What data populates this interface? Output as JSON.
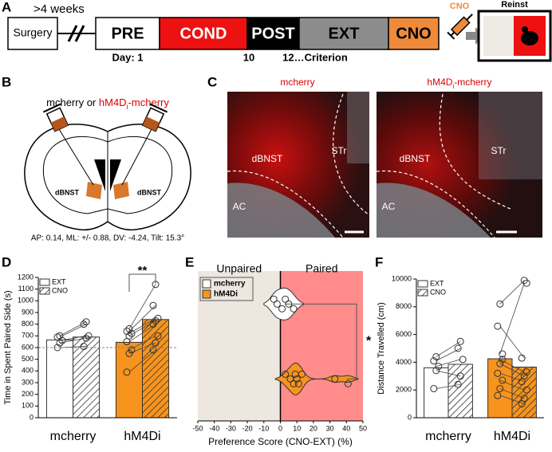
{
  "timeline": {
    "label": "A",
    "gap": ">4 weeks",
    "surgery": "Surgery",
    "stages": [
      {
        "name": "PRE",
        "color": "#ffffff"
      },
      {
        "name": "COND",
        "color": "#ee1111"
      },
      {
        "name": "POST",
        "color": "#000000"
      },
      {
        "name": "EXT",
        "color": "#8c8c8c"
      },
      {
        "name": "CNO",
        "color": "#ef8a3a"
      }
    ],
    "days": [
      "Day: 1",
      "10",
      "12…Criterion"
    ],
    "drug": "CNO",
    "test": "Reinst"
  },
  "schematic": {
    "label": "B",
    "virus_a": "mcherry or",
    "virus_b": "hM4D",
    "virus_b_sub": "i",
    "virus_b_suffix": "-mcherry",
    "regions": [
      "dBNST",
      "dBNST"
    ],
    "coordinates": "AP: 0.14, ML: +/- 0.88, DV: -4.24, Tilt: 15.3°"
  },
  "histology": {
    "label": "C",
    "panels": [
      {
        "title": "mcherry"
      },
      {
        "title": "hM4D",
        "sub": "i",
        "suffix": "-mcherry"
      }
    ],
    "regions": [
      "dBNST",
      "STr",
      "AC"
    ]
  },
  "chart_data": [
    {
      "type": "bar",
      "label": "D",
      "y_label": "Time in Spent Paired Side (s)",
      "categories": [
        "mcherry",
        "hM4Di"
      ],
      "category_colors": [
        "#ffffff",
        "#f7941d"
      ],
      "series": [
        {
          "name": "EXT",
          "hatch": false,
          "values": [
            665,
            645
          ],
          "points": [
            [
              600,
              640,
              660,
              690,
              700
            ],
            [
              390,
              550,
              580,
              650,
              700,
              720,
              740,
              760
            ]
          ]
        },
        {
          "name": "CNO",
          "hatch": true,
          "values": [
            690,
            840
          ],
          "points": [
            [
              610,
              680,
              700,
              800,
              820
            ],
            [
              580,
              640,
              700,
              800,
              830,
              850,
              960,
              1140
            ]
          ]
        }
      ],
      "ylim": [
        0,
        1200
      ],
      "yticks": [
        0,
        100,
        200,
        300,
        400,
        500,
        600,
        700,
        800,
        900,
        1000,
        1100,
        1200
      ],
      "reference_line": 600,
      "annotation": "**",
      "legend": "upper left"
    },
    {
      "type": "violin",
      "label": "E",
      "x_label": "Preference Score (CNO-EXT) (%)",
      "regions": [
        "Unpaired",
        "Paired"
      ],
      "region_colors": [
        "#ede7e0",
        "#ff8b8b"
      ],
      "series": [
        {
          "name": "mcherry",
          "color": "#ffffff",
          "values": [
            -4,
            -2,
            1,
            3,
            5,
            8
          ]
        },
        {
          "name": "hM4Di",
          "color": "#f7941d",
          "values": [
            3,
            6,
            8,
            9,
            10,
            11,
            13,
            33,
            41
          ]
        }
      ],
      "xlim": [
        -50,
        50
      ],
      "xticks": [
        -50,
        -40,
        -30,
        -20,
        -10,
        0,
        10,
        20,
        30,
        40,
        50
      ],
      "annotation": "*",
      "legend": "upper left"
    },
    {
      "type": "bar",
      "label": "F",
      "y_label": "Distance Travelled (cm)",
      "categories": [
        "mcherry",
        "hM4Di"
      ],
      "category_colors": [
        "#ffffff",
        "#f7941d"
      ],
      "series": [
        {
          "name": "EXT",
          "hatch": false,
          "values": [
            3600,
            4250
          ],
          "points": [
            [
              2100,
              3400,
              3700,
              4100,
              4400
            ],
            [
              1600,
              2100,
              2700,
              3200,
              3900,
              4200,
              6600,
              8200,
              4600
            ]
          ]
        },
        {
          "name": "CNO",
          "hatch": true,
          "values": [
            3850,
            3650
          ],
          "points": [
            [
              2400,
              3000,
              4200,
              5000,
              5500
            ],
            [
              1000,
              1400,
              2000,
              2600,
              3000,
              3300,
              4300,
              9900,
              9700
            ]
          ]
        }
      ],
      "ylim": [
        0,
        10000
      ],
      "yticks": [
        0,
        2000,
        4000,
        6000,
        8000,
        10000
      ],
      "legend": "upper left"
    }
  ]
}
